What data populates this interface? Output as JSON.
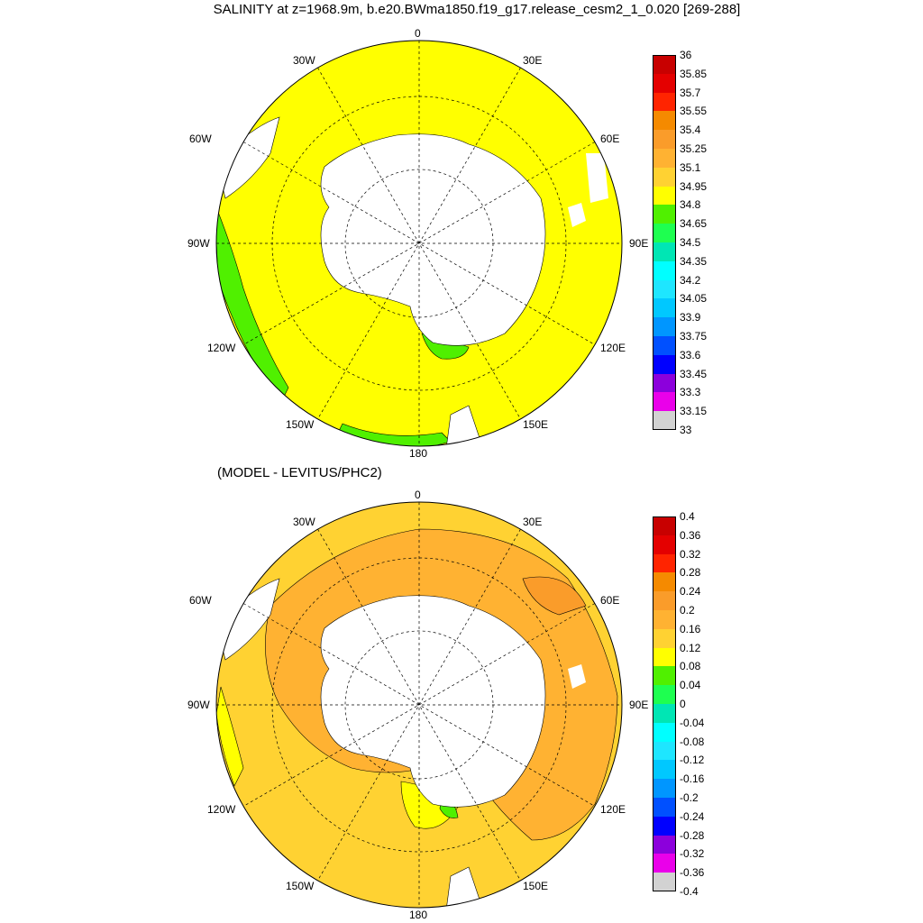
{
  "title": "SALINITY at z=1968.9m, b.e20.BWma1850.f19_g17.release_cesm2_1_0.020 [269-288]",
  "subtitle": "(MODEL - LEVITUS/PHC2)",
  "maps": [
    {
      "name": "salinity",
      "longitude_labels": [
        "0",
        "30E",
        "60E",
        "90E",
        "120E",
        "150E",
        "180",
        "150W",
        "120W",
        "90W",
        "60W",
        "30W"
      ],
      "dominant_level": "34.95",
      "colorbar": {
        "labels": [
          "36",
          "35.85",
          "35.7",
          "35.55",
          "35.4",
          "35.25",
          "35.1",
          "34.95",
          "34.8",
          "34.65",
          "34.5",
          "34.35",
          "34.2",
          "34.05",
          "33.9",
          "33.75",
          "33.6",
          "33.45",
          "33.3",
          "33.15",
          "33"
        ],
        "colors": [
          "#c80000",
          "#e40000",
          "#ff2400",
          "#f58a00",
          "#fa9c2a",
          "#ffb232",
          "#ffd232",
          "#ffff00",
          "#50f000",
          "#1eff50",
          "#00e6b4",
          "#00ffff",
          "#1ee6ff",
          "#00c8ff",
          "#0096ff",
          "#0050ff",
          "#0000ff",
          "#8c00dc",
          "#ea00ea",
          "#d2d2d2",
          "#6e6e6e"
        ]
      }
    },
    {
      "name": "difference",
      "longitude_labels": [
        "0",
        "30E",
        "60E",
        "90E",
        "120E",
        "150E",
        "180",
        "150W",
        "120W",
        "90W",
        "60W",
        "30W"
      ],
      "dominant_level": "0.12",
      "colorbar": {
        "labels": [
          "0.4",
          "0.36",
          "0.32",
          "0.28",
          "0.24",
          "0.2",
          "0.16",
          "0.12",
          "0.08",
          "0.04",
          "0",
          "-0.04",
          "-0.08",
          "-0.12",
          "-0.16",
          "-0.2",
          "-0.24",
          "-0.28",
          "-0.32",
          "-0.36",
          "-0.4"
        ],
        "colors": [
          "#c80000",
          "#e40000",
          "#ff2400",
          "#f58a00",
          "#fa9c2a",
          "#ffb232",
          "#ffd232",
          "#ffff00",
          "#50f000",
          "#1eff50",
          "#00e6b4",
          "#00ffff",
          "#1ee6ff",
          "#00c8ff",
          "#0096ff",
          "#0050ff",
          "#0000ff",
          "#8c00dc",
          "#ea00ea",
          "#d2d2d2",
          "#6e6e6e"
        ]
      }
    }
  ]
}
